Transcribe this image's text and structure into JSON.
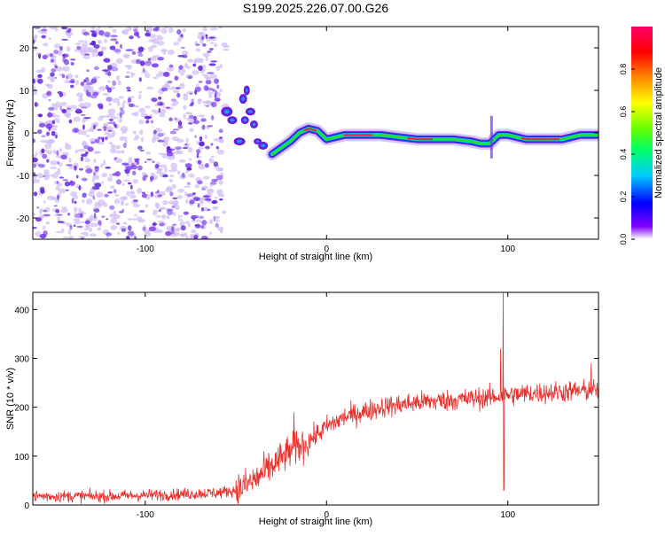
{
  "title": "S199.2025.226.07.00.G26",
  "colors": {
    "axis": "#000000",
    "snr_line": "#e8302a",
    "noise_purple": "#7a3ee6",
    "noise_light": "#d2bff5",
    "ridge_green": "#22e022",
    "ridge_red": "#ee2244"
  },
  "chart_data": [
    {
      "type": "heatmap",
      "name": "spectrogram",
      "xlabel": "Height of straight line (km)",
      "ylabel": "Frequency (Hz)",
      "xlim": [
        -162,
        150
      ],
      "ylim": [
        -25,
        25
      ],
      "xticks": [
        -100,
        0,
        100
      ],
      "xtick_labels": [
        "-100",
        "0",
        "100"
      ],
      "yticks": [
        -20,
        -10,
        0,
        10,
        20
      ],
      "ytick_labels": [
        "-20",
        "-10",
        "0",
        "10",
        "20"
      ],
      "noise_region_x": [
        -162,
        -58
      ],
      "ridge": {
        "x": [
          -30,
          -25,
          -20,
          -15,
          -10,
          -5,
          0,
          5,
          10,
          20,
          30,
          40,
          50,
          60,
          70,
          80,
          85,
          90,
          95,
          100,
          110,
          120,
          130,
          140,
          150
        ],
        "freq": [
          -5,
          -3.5,
          -2,
          0,
          1,
          0.5,
          -1.5,
          -1,
          -0.5,
          -0.5,
          -0.5,
          -1,
          -1.5,
          -1.5,
          -1.5,
          -2,
          -2.5,
          -2.5,
          -0.5,
          -0.5,
          -1.5,
          -1.5,
          -1.5,
          -0.5,
          -0.5
        ]
      },
      "colorbar": {
        "label": "Normalized spectral amplitude",
        "range": [
          0,
          1
        ],
        "ticks": [
          0.0,
          0.2,
          0.4,
          0.6,
          0.8
        ],
        "tick_labels": [
          "0.0",
          "0.2",
          "0.4",
          "0.6",
          "0.8"
        ],
        "colormap": [
          "#ffffff",
          "#8000ff",
          "#0000ff",
          "#00ccff",
          "#00ff66",
          "#66ff00",
          "#ffff00",
          "#ff8800",
          "#ff0000",
          "#ff0066"
        ]
      }
    },
    {
      "type": "line",
      "name": "snr",
      "xlabel": "Height of straight line (km)",
      "ylabel": "SNR (10 * v/v)",
      "xlim": [
        -162,
        150
      ],
      "ylim": [
        0,
        435
      ],
      "xticks": [
        -100,
        0,
        100
      ],
      "xtick_labels": [
        "-100",
        "0",
        "100"
      ],
      "yticks": [
        0,
        100,
        200,
        300,
        400
      ],
      "ytick_labels": [
        "0",
        "100",
        "200",
        "300",
        "400"
      ],
      "trend": {
        "x": [
          -162,
          -120,
          -80,
          -60,
          -50,
          -40,
          -30,
          -20,
          -10,
          0,
          10,
          20,
          30,
          50,
          70,
          90,
          100,
          120,
          150
        ],
        "y": [
          18,
          18,
          22,
          25,
          30,
          50,
          80,
          110,
          130,
          160,
          180,
          190,
          200,
          210,
          215,
          220,
          225,
          230,
          235
        ]
      },
      "noise_amplitude": [
        {
          "x": [
            -162,
            -50
          ],
          "amp": 12
        },
        {
          "x": [
            -50,
            -10
          ],
          "amp": 35
        },
        {
          "x": [
            -10,
            150
          ],
          "amp": 22
        }
      ],
      "spikes": [
        {
          "x": -18,
          "y": 190
        },
        {
          "x": 96,
          "y": 320
        },
        {
          "x": 97.5,
          "y": 435
        },
        {
          "x": 97.8,
          "y": 30
        },
        {
          "x": 146,
          "y": 290
        }
      ]
    }
  ]
}
